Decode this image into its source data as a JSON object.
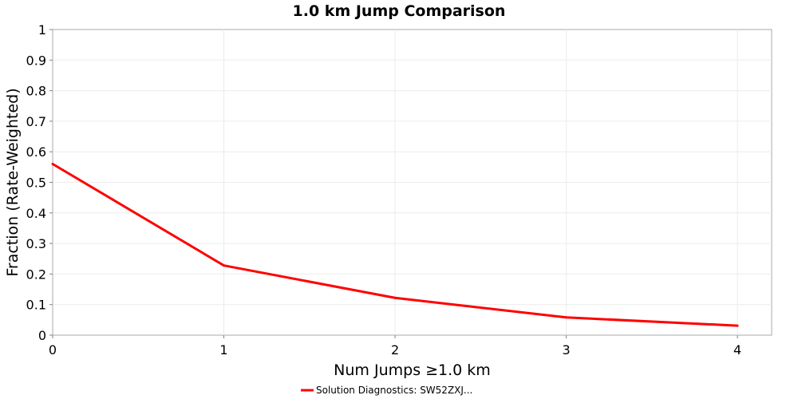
{
  "chart_data": {
    "type": "line",
    "title": "1.0 km Jump Comparison",
    "xlabel": "Num Jumps ≥1.0 km",
    "ylabel": "Fraction (Rate-Weighted)",
    "xlim": [
      0,
      4.2
    ],
    "ylim": [
      0,
      1
    ],
    "x_ticks": [
      "0",
      "1",
      "2",
      "3",
      "4"
    ],
    "y_ticks": [
      "0",
      "0.1",
      "0.2",
      "0.3",
      "0.4",
      "0.5",
      "0.6",
      "0.7",
      "0.8",
      "0.9",
      "1"
    ],
    "grid": true,
    "legend_position": "bottom-center",
    "series": [
      {
        "name": "Solution Diagnostics: SW52ZXJ...",
        "color": "#ff0000",
        "x": [
          0,
          1,
          2,
          3,
          4
        ],
        "y": [
          0.56,
          0.228,
          0.122,
          0.058,
          0.031
        ]
      }
    ]
  }
}
